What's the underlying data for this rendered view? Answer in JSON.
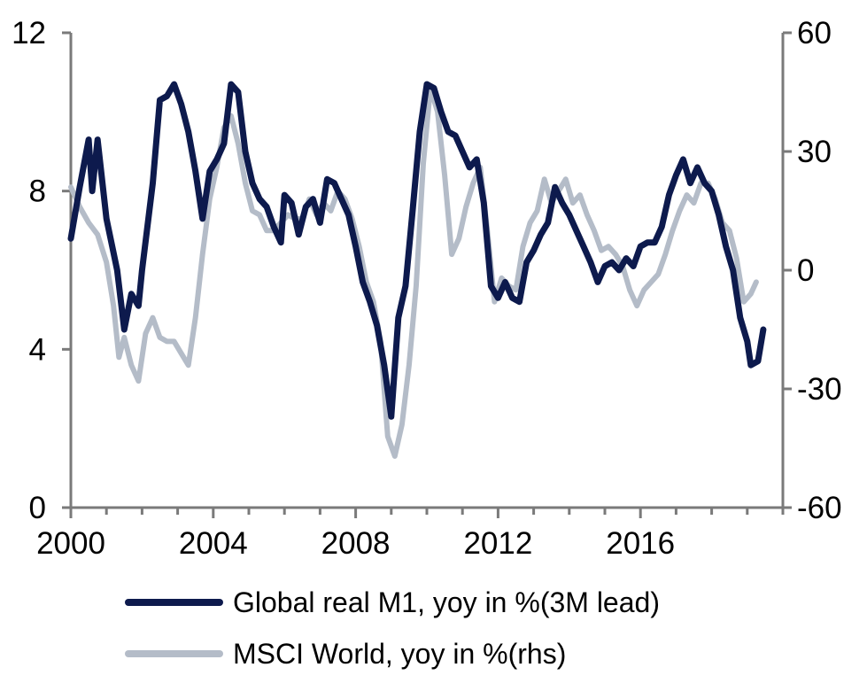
{
  "chart_data": {
    "type": "line",
    "x_axis": {
      "ticks": [
        2000,
        2004,
        2008,
        2012,
        2016
      ],
      "tick_labels": [
        "2000",
        "2004",
        "2008",
        "2012",
        "2016"
      ],
      "range": [
        2000,
        2020
      ]
    },
    "y_axis_left": {
      "range": [
        0,
        12
      ],
      "ticks": [
        0,
        4,
        8,
        12
      ],
      "tick_labels": [
        "0",
        "4",
        "8",
        "12"
      ]
    },
    "y_axis_right": {
      "range": [
        -60,
        60
      ],
      "ticks": [
        -60,
        -30,
        0,
        30,
        60
      ],
      "tick_labels": [
        "-60",
        "-30",
        "0",
        "30",
        "60"
      ]
    },
    "grid": false,
    "legend_position": "bottom",
    "series": [
      {
        "name": "Global real M1, yoy in %(3M lead)",
        "axis": "left",
        "color": "#0d1a4d",
        "points": [
          [
            2000.0,
            6.8
          ],
          [
            2000.25,
            8.1
          ],
          [
            2000.5,
            9.3
          ],
          [
            2000.6,
            8.0
          ],
          [
            2000.75,
            9.3
          ],
          [
            2001.0,
            7.3
          ],
          [
            2001.3,
            6.0
          ],
          [
            2001.5,
            4.5
          ],
          [
            2001.7,
            5.4
          ],
          [
            2001.9,
            5.1
          ],
          [
            2002.0,
            6.0
          ],
          [
            2002.3,
            8.2
          ],
          [
            2002.5,
            10.3
          ],
          [
            2002.7,
            10.4
          ],
          [
            2002.9,
            10.7
          ],
          [
            2003.1,
            10.2
          ],
          [
            2003.3,
            9.5
          ],
          [
            2003.5,
            8.5
          ],
          [
            2003.7,
            7.3
          ],
          [
            2003.9,
            8.5
          ],
          [
            2004.1,
            8.8
          ],
          [
            2004.3,
            9.2
          ],
          [
            2004.5,
            10.7
          ],
          [
            2004.7,
            10.5
          ],
          [
            2004.9,
            9.0
          ],
          [
            2005.1,
            8.2
          ],
          [
            2005.3,
            7.8
          ],
          [
            2005.5,
            7.6
          ],
          [
            2005.7,
            7.1
          ],
          [
            2005.9,
            6.7
          ],
          [
            2006.0,
            7.9
          ],
          [
            2006.2,
            7.7
          ],
          [
            2006.4,
            6.9
          ],
          [
            2006.6,
            7.6
          ],
          [
            2006.8,
            7.8
          ],
          [
            2007.0,
            7.2
          ],
          [
            2007.2,
            8.3
          ],
          [
            2007.4,
            8.2
          ],
          [
            2007.6,
            7.8
          ],
          [
            2007.8,
            7.4
          ],
          [
            2008.0,
            6.6
          ],
          [
            2008.2,
            5.7
          ],
          [
            2008.4,
            5.2
          ],
          [
            2008.6,
            4.6
          ],
          [
            2008.8,
            3.6
          ],
          [
            2009.0,
            2.3
          ],
          [
            2009.2,
            4.8
          ],
          [
            2009.4,
            5.6
          ],
          [
            2009.6,
            7.5
          ],
          [
            2009.8,
            9.5
          ],
          [
            2010.0,
            10.7
          ],
          [
            2010.2,
            10.6
          ],
          [
            2010.4,
            10.0
          ],
          [
            2010.6,
            9.5
          ],
          [
            2010.8,
            9.4
          ],
          [
            2011.0,
            9.0
          ],
          [
            2011.2,
            8.6
          ],
          [
            2011.4,
            8.8
          ],
          [
            2011.6,
            7.7
          ],
          [
            2011.8,
            5.6
          ],
          [
            2012.0,
            5.3
          ],
          [
            2012.2,
            5.7
          ],
          [
            2012.4,
            5.3
          ],
          [
            2012.6,
            5.2
          ],
          [
            2012.8,
            6.2
          ],
          [
            2013.0,
            6.5
          ],
          [
            2013.2,
            6.9
          ],
          [
            2013.4,
            7.2
          ],
          [
            2013.6,
            8.1
          ],
          [
            2013.8,
            7.7
          ],
          [
            2014.0,
            7.4
          ],
          [
            2014.2,
            7.0
          ],
          [
            2014.4,
            6.6
          ],
          [
            2014.6,
            6.2
          ],
          [
            2014.8,
            5.7
          ],
          [
            2015.0,
            6.1
          ],
          [
            2015.2,
            6.2
          ],
          [
            2015.4,
            6.0
          ],
          [
            2015.6,
            6.3
          ],
          [
            2015.8,
            6.1
          ],
          [
            2016.0,
            6.6
          ],
          [
            2016.2,
            6.7
          ],
          [
            2016.4,
            6.7
          ],
          [
            2016.6,
            7.1
          ],
          [
            2016.8,
            7.9
          ],
          [
            2017.0,
            8.4
          ],
          [
            2017.2,
            8.8
          ],
          [
            2017.4,
            8.2
          ],
          [
            2017.6,
            8.6
          ],
          [
            2017.8,
            8.2
          ],
          [
            2018.0,
            8.0
          ],
          [
            2018.2,
            7.4
          ],
          [
            2018.4,
            6.6
          ],
          [
            2018.6,
            6.0
          ],
          [
            2018.8,
            4.8
          ],
          [
            2019.0,
            4.2
          ],
          [
            2019.1,
            3.6
          ],
          [
            2019.3,
            3.7
          ],
          [
            2019.45,
            4.5
          ]
        ]
      },
      {
        "name": "MSCI World, yoy in %(rhs)",
        "axis": "right",
        "color": "#b4bcc8",
        "points": [
          [
            2000.0,
            21
          ],
          [
            2000.25,
            16
          ],
          [
            2000.5,
            12
          ],
          [
            2000.75,
            9
          ],
          [
            2001.0,
            2
          ],
          [
            2001.2,
            -9
          ],
          [
            2001.35,
            -22
          ],
          [
            2001.5,
            -17
          ],
          [
            2001.7,
            -24
          ],
          [
            2001.9,
            -28
          ],
          [
            2002.1,
            -16
          ],
          [
            2002.3,
            -12
          ],
          [
            2002.5,
            -17
          ],
          [
            2002.7,
            -18
          ],
          [
            2002.9,
            -18
          ],
          [
            2003.1,
            -21
          ],
          [
            2003.3,
            -24
          ],
          [
            2003.5,
            -12
          ],
          [
            2003.7,
            4
          ],
          [
            2003.9,
            18
          ],
          [
            2004.1,
            26
          ],
          [
            2004.3,
            36
          ],
          [
            2004.5,
            39
          ],
          [
            2004.7,
            32
          ],
          [
            2004.9,
            22
          ],
          [
            2005.1,
            15
          ],
          [
            2005.3,
            14
          ],
          [
            2005.5,
            10
          ],
          [
            2005.7,
            10
          ],
          [
            2005.9,
            12
          ],
          [
            2006.1,
            14
          ],
          [
            2006.3,
            13
          ],
          [
            2006.5,
            13
          ],
          [
            2006.7,
            18
          ],
          [
            2006.9,
            14
          ],
          [
            2007.1,
            17
          ],
          [
            2007.3,
            15
          ],
          [
            2007.5,
            20
          ],
          [
            2007.7,
            18
          ],
          [
            2007.9,
            13
          ],
          [
            2008.1,
            6
          ],
          [
            2008.3,
            -3
          ],
          [
            2008.5,
            -8
          ],
          [
            2008.7,
            -18
          ],
          [
            2008.9,
            -42
          ],
          [
            2009.1,
            -47
          ],
          [
            2009.3,
            -39
          ],
          [
            2009.5,
            -24
          ],
          [
            2009.7,
            -4
          ],
          [
            2009.9,
            27
          ],
          [
            2010.1,
            46
          ],
          [
            2010.3,
            40
          ],
          [
            2010.5,
            24
          ],
          [
            2010.7,
            4
          ],
          [
            2010.9,
            8
          ],
          [
            2011.1,
            16
          ],
          [
            2011.3,
            22
          ],
          [
            2011.5,
            26
          ],
          [
            2011.7,
            10
          ],
          [
            2011.9,
            -8
          ],
          [
            2012.1,
            -2
          ],
          [
            2012.3,
            -4
          ],
          [
            2012.5,
            -5
          ],
          [
            2012.7,
            6
          ],
          [
            2012.9,
            12
          ],
          [
            2013.1,
            15
          ],
          [
            2013.3,
            23
          ],
          [
            2013.5,
            17
          ],
          [
            2013.7,
            20
          ],
          [
            2013.9,
            23
          ],
          [
            2014.1,
            17
          ],
          [
            2014.3,
            19
          ],
          [
            2014.5,
            14
          ],
          [
            2014.7,
            10
          ],
          [
            2014.9,
            5
          ],
          [
            2015.1,
            6
          ],
          [
            2015.3,
            4
          ],
          [
            2015.5,
            1
          ],
          [
            2015.7,
            -5
          ],
          [
            2015.9,
            -9
          ],
          [
            2016.1,
            -5
          ],
          [
            2016.3,
            -3
          ],
          [
            2016.5,
            -1
          ],
          [
            2016.7,
            4
          ],
          [
            2016.9,
            10
          ],
          [
            2017.1,
            15
          ],
          [
            2017.3,
            19
          ],
          [
            2017.5,
            17
          ],
          [
            2017.7,
            22
          ],
          [
            2017.9,
            22
          ],
          [
            2018.1,
            18
          ],
          [
            2018.3,
            12
          ],
          [
            2018.5,
            10
          ],
          [
            2018.7,
            3
          ],
          [
            2018.9,
            -8
          ],
          [
            2019.1,
            -6
          ],
          [
            2019.25,
            -3
          ]
        ]
      }
    ]
  }
}
